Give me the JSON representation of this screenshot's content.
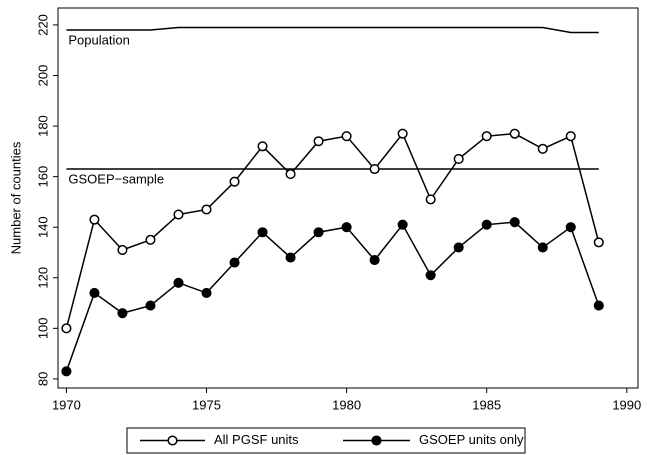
{
  "chart_data": {
    "type": "line",
    "y_label": "Number of counties",
    "x": [
      1970,
      1971,
      1972,
      1973,
      1974,
      1975,
      1976,
      1977,
      1978,
      1979,
      1980,
      1981,
      1982,
      1983,
      1984,
      1985,
      1986,
      1987,
      1988,
      1989
    ],
    "series": [
      {
        "name": "All PGSF units",
        "color": "#000000",
        "marker": "hollow",
        "values": [
          100,
          143,
          131,
          135,
          145,
          147,
          158,
          172,
          161,
          174,
          176,
          163,
          177,
          151,
          167,
          176,
          177,
          171,
          176,
          134
        ]
      },
      {
        "name": "GSOEP units only",
        "color": "#000000",
        "marker": "filled",
        "values": [
          83,
          114,
          106,
          109,
          118,
          114,
          126,
          138,
          128,
          138,
          140,
          127,
          141,
          121,
          132,
          141,
          142,
          132,
          140,
          109
        ]
      }
    ],
    "reference_lines": [
      {
        "label": "Population",
        "color": "#000000",
        "values": [
          218,
          218,
          218,
          218,
          219,
          219,
          219,
          219,
          219,
          219,
          219,
          219,
          219,
          219,
          219,
          219,
          219,
          219,
          217,
          217
        ]
      },
      {
        "label": "GSOEP−sample",
        "color": "#000000",
        "values": [
          163,
          163,
          163,
          163,
          163,
          163,
          163,
          163,
          163,
          163,
          163,
          163,
          163,
          163,
          163,
          163,
          163,
          163,
          163,
          163
        ]
      }
    ],
    "xlim": [
      1969.7,
      1990.4
    ],
    "xticks": [
      1970,
      1975,
      1980,
      1985,
      1990
    ],
    "ylim": [
      76.4,
      226.7
    ],
    "yticks": [
      80,
      100,
      120,
      140,
      160,
      180,
      200,
      220
    ],
    "grid": false,
    "legend": "bottom"
  }
}
